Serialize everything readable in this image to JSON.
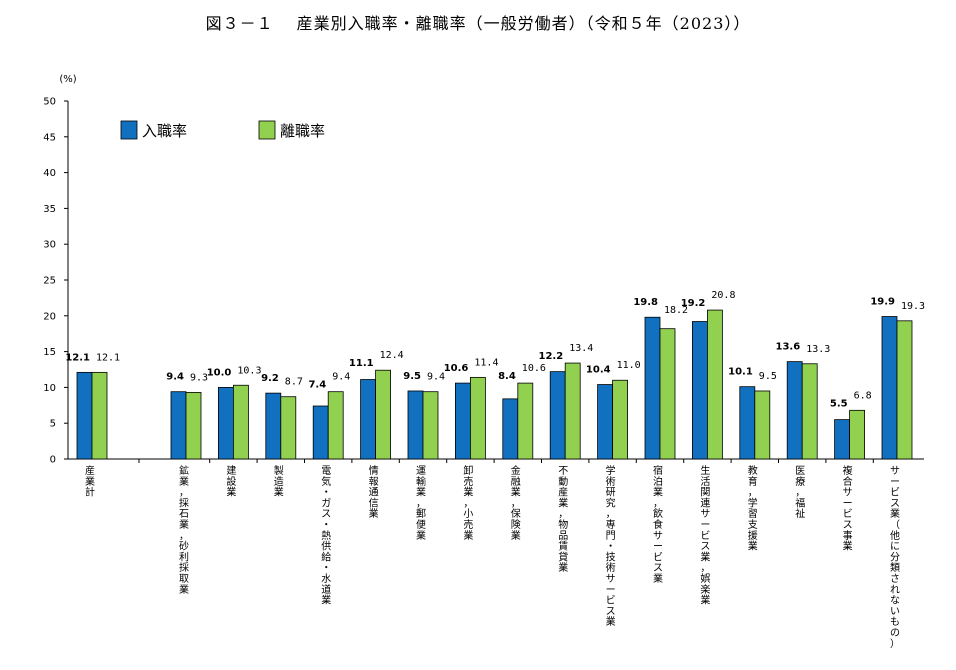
{
  "colors": {
    "entry": "#1170C0",
    "separation": "#92D050",
    "axis": "#000000"
  },
  "chart_data": {
    "type": "bar",
    "title": "図３－１　 産業別入職率・離職率（一般労働者）（令和５年（2023））",
    "ylabel": "(%)",
    "ylim": [
      0,
      50
    ],
    "yticks": [
      0,
      5,
      10,
      15,
      20,
      25,
      30,
      35,
      40,
      45,
      50
    ],
    "legend_position": "top-left",
    "grid": false,
    "categories": [
      "産業計",
      "鉱業，採石業，砂利採取業",
      "建設業",
      "製造業",
      "電気・ガス・熱供給・水道業",
      "情報通信業",
      "運輸業，郵便業",
      "卸売業，小売業",
      "金融業，保険業",
      "不動産業，物品賃貸業",
      "学術研究，専門・技術サービス業",
      "宿泊業，飲食サービス業",
      "生活関連サービス業，娯楽業",
      "教育，学習支援業",
      "医療，福祉",
      "複合サービス事業",
      "サービス業（他に分類されないもの）"
    ],
    "series": [
      {
        "name": "入職率",
        "values": [
          12.1,
          9.4,
          10.0,
          9.2,
          7.4,
          11.1,
          9.5,
          10.6,
          8.4,
          12.2,
          10.4,
          19.8,
          19.2,
          10.1,
          13.6,
          5.5,
          19.9
        ],
        "labels": [
          "12.1",
          "9.4",
          "10.0",
          "9.2",
          "7.4",
          "11.1",
          "9.5",
          "10.6",
          "8.4",
          "12.2",
          "10.4",
          "19.8",
          "19.2",
          "10.1",
          "13.6",
          "5.5",
          "19.9"
        ]
      },
      {
        "name": "離職率",
        "values": [
          12.1,
          9.3,
          10.3,
          8.7,
          9.4,
          12.4,
          9.4,
          11.4,
          10.6,
          13.4,
          11.0,
          18.2,
          20.8,
          9.5,
          13.3,
          6.8,
          19.3
        ],
        "labels": [
          "12.1",
          "9.3",
          "10.3",
          "8.7",
          "9.4",
          "12.4",
          "9.4",
          "11.4",
          "10.6",
          "13.4",
          "11.0",
          "18.2",
          "20.8",
          "9.5",
          "13.3",
          "6.8",
          "19.3"
        ]
      }
    ]
  }
}
